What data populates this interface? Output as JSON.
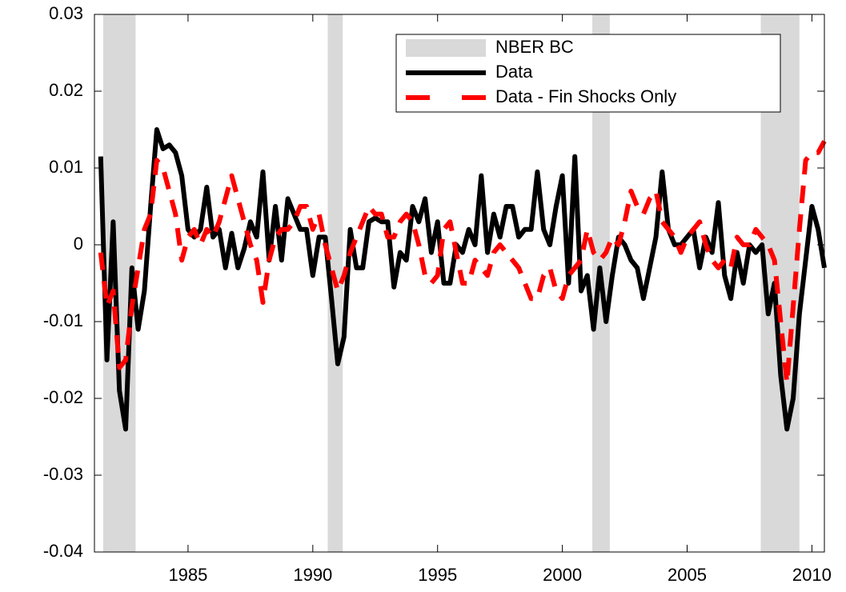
{
  "chart_data": {
    "type": "line",
    "x": [
      1981.5,
      1981.75,
      1982,
      1982.25,
      1982.5,
      1982.75,
      1983,
      1983.25,
      1983.5,
      1983.75,
      1984,
      1984.25,
      1984.5,
      1984.75,
      1985,
      1985.25,
      1985.5,
      1985.75,
      1986,
      1986.25,
      1986.5,
      1986.75,
      1987,
      1987.25,
      1987.5,
      1987.75,
      1988,
      1988.25,
      1988.5,
      1988.75,
      1989,
      1989.25,
      1989.5,
      1989.75,
      1990,
      1990.25,
      1990.5,
      1990.75,
      1991,
      1991.25,
      1991.5,
      1991.75,
      1992,
      1992.25,
      1992.5,
      1992.75,
      1993,
      1993.25,
      1993.5,
      1993.75,
      1994,
      1994.25,
      1994.5,
      1994.75,
      1995,
      1995.25,
      1995.5,
      1995.75,
      1996,
      1996.25,
      1996.5,
      1996.75,
      1997,
      1997.25,
      1997.5,
      1997.75,
      1998,
      1998.25,
      1998.5,
      1998.75,
      1999,
      1999.25,
      1999.5,
      1999.75,
      2000,
      2000.25,
      2000.5,
      2000.75,
      2001,
      2001.25,
      2001.5,
      2001.75,
      2002,
      2002.25,
      2002.5,
      2002.75,
      2003,
      2003.25,
      2003.5,
      2003.75,
      2004,
      2004.25,
      2004.5,
      2004.75,
      2005,
      2005.25,
      2005.5,
      2005.75,
      2006,
      2006.25,
      2006.5,
      2006.75,
      2007,
      2007.25,
      2007.5,
      2007.75,
      2008,
      2008.25,
      2008.5,
      2008.75,
      2009,
      2009.25,
      2009.5,
      2009.75,
      2010,
      2010.25,
      2010.5
    ],
    "shading": {
      "name": "NBER BC",
      "color": "#d9d9d9",
      "periods": [
        [
          1981.6,
          1982.9
        ],
        [
          1990.6,
          1991.2
        ],
        [
          2001.2,
          2001.9
        ],
        [
          2007.95,
          2009.5
        ]
      ]
    },
    "series": [
      {
        "name": "Data",
        "color": "#000000",
        "dashed": false,
        "values": [
          0.0115,
          -0.015,
          0.003,
          -0.019,
          -0.024,
          -0.003,
          -0.011,
          -0.006,
          0.005,
          0.015,
          0.0125,
          0.013,
          0.012,
          0.009,
          0.002,
          0.001,
          0.002,
          0.0075,
          0.001,
          0.002,
          -0.003,
          0.0015,
          -0.003,
          -0.0005,
          0.003,
          0.001,
          0.0095,
          -0.002,
          0.005,
          -0.002,
          0.006,
          0.004,
          0.002,
          0.002,
          -0.004,
          0.001,
          0.001,
          -0.007,
          -0.0155,
          -0.012,
          0.002,
          -0.003,
          -0.003,
          0.003,
          0.0035,
          0.003,
          0.003,
          -0.0055,
          -0.001,
          -0.002,
          0.005,
          0.003,
          0.006,
          -0.001,
          0.003,
          -0.005,
          -0.005,
          0,
          -0.001,
          0.002,
          0,
          0.009,
          -0.001,
          0.004,
          0.001,
          0.005,
          0.005,
          0.001,
          0.002,
          0.002,
          0.0095,
          0.002,
          0,
          0.005,
          0.009,
          -0.005,
          0.0115,
          -0.006,
          -0.004,
          -0.011,
          -0.003,
          -0.01,
          -0.004,
          0.001,
          0,
          -0.002,
          -0.003,
          -0.007,
          -0.003,
          0.001,
          0.0095,
          0.002,
          0,
          0,
          0.001,
          0.002,
          -0.003,
          0.001,
          -0.001,
          0.0055,
          -0.004,
          -0.007,
          -0.001,
          -0.005,
          0,
          -0.001,
          0,
          -0.009,
          -0.005,
          -0.017,
          -0.024,
          -0.02,
          -0.009,
          -0.002,
          0.005,
          0.002,
          -0.003
        ]
      },
      {
        "name": "Data - Fin Shocks Only",
        "color": "#ff0000",
        "dashed": true,
        "values": [
          -0.001,
          -0.008,
          -0.006,
          -0.016,
          -0.015,
          -0.008,
          -0.003,
          0.002,
          0.004,
          0.011,
          0.01,
          0.007,
          0.004,
          -0.002,
          0.001,
          0.002,
          0,
          0.002,
          0.001,
          0.003,
          0.006,
          0.009,
          0.006,
          0.003,
          0,
          -0.002,
          -0.0075,
          -0.002,
          0.001,
          0.002,
          0.002,
          0.003,
          0.005,
          0.005,
          0.002,
          0.004,
          0,
          -0.003,
          -0.006,
          -0.004,
          -0.001,
          0.001,
          0.003,
          0.005,
          0.004,
          0.004,
          0.001,
          0.001,
          0.003,
          0.004,
          0.003,
          0,
          -0.004,
          -0.005,
          -0.004,
          0.002,
          0.003,
          -0.001,
          -0.005,
          -0.005,
          -0.002,
          -0.003,
          -0.004,
          -0.001,
          0,
          -0.001,
          -0.002,
          -0.003,
          -0.005,
          -0.007,
          -0.007,
          -0.004,
          -0.003,
          -0.006,
          -0.007,
          -0.004,
          -0.003,
          -0.002,
          0.002,
          -0.001,
          -0.002,
          -0.001,
          0.001,
          0,
          0.003,
          0.007,
          0.005,
          0.004,
          0.006,
          0.007,
          0.003,
          0.002,
          0.001,
          -0.001,
          0.001,
          0.002,
          0.003,
          0,
          -0.002,
          -0.003,
          -0.002,
          -0.003,
          0.001,
          0,
          0,
          0.002,
          0.001,
          0,
          -0.002,
          -0.01,
          -0.018,
          -0.008,
          0.002,
          0.011,
          0.012,
          0.012,
          0.0135
        ]
      }
    ],
    "xlim": [
      1981.25,
      2010.5
    ],
    "xticks": [
      1985,
      1990,
      1995,
      2000,
      2005,
      2010
    ],
    "ylim": [
      -0.04,
      0.03
    ],
    "yticks": [
      -0.04,
      -0.03,
      -0.02,
      -0.01,
      0,
      0.01,
      0.02,
      0.03
    ],
    "legend": "upper-right"
  }
}
